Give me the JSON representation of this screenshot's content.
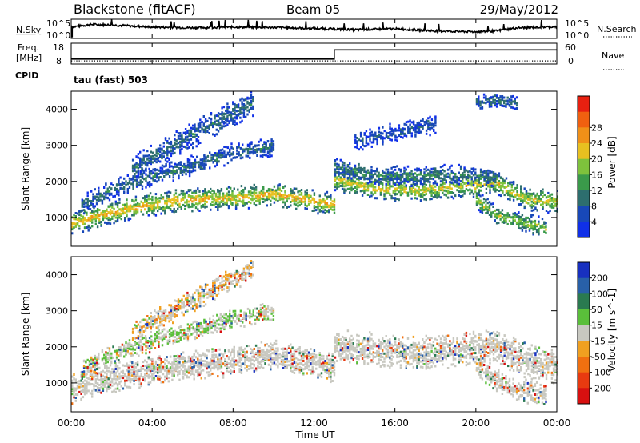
{
  "header": {
    "station": "Blackstone (fitACF)",
    "beam": "Beam 05",
    "date": "29/May/2012"
  },
  "noise_panel": {
    "left_label": "N.Sky",
    "right_label": "N.Search",
    "left_ticks": [
      "10^5",
      "10^0"
    ],
    "right_ticks": [
      "10^5",
      "10^0"
    ]
  },
  "freq_panel": {
    "left_label_line1": "Freq.",
    "left_label_line2": "[MHz]",
    "left_ticks": [
      "18",
      "8"
    ],
    "right_ticks": [
      "60",
      "0"
    ],
    "right_label": "Nave",
    "cpid_label": "CPID",
    "program": "tau (fast) 503"
  },
  "colors": {
    "power": [
      "#1030e8",
      "#1848b8",
      "#2d6e6e",
      "#3a9a4a",
      "#7ec23c",
      "#e8c020",
      "#f09018",
      "#f06010",
      "#e82010"
    ],
    "velocity": [
      "#1830c0",
      "#2860a8",
      "#2a7a50",
      "#5abf3a",
      "#c8c8c0",
      "#f0a020",
      "#f07010",
      "#e83a10",
      "#d81010"
    ]
  },
  "chart_data": [
    {
      "type": "line",
      "name": "noise",
      "x": [
        "00:00",
        "01:00",
        "02:00",
        "03:00",
        "04:00",
        "06:00",
        "08:00",
        "10:00",
        "12:00",
        "14:00",
        "16:00",
        "18:00",
        "20:00",
        "21:00",
        "22:00",
        "24:00"
      ],
      "values": [
        0.6,
        0.75,
        0.72,
        0.66,
        0.6,
        0.56,
        0.6,
        0.58,
        0.52,
        0.45,
        0.5,
        0.38,
        0.33,
        0.38,
        0.55,
        0.62
      ],
      "ylim": [
        0,
        1
      ]
    },
    {
      "type": "line",
      "name": "frequency_nave",
      "x": [
        "00:00",
        "13:00",
        "13:00",
        "24:00"
      ],
      "frequency_mhz": [
        10.4,
        10.4,
        14.8,
        14.8
      ],
      "nave": [
        2,
        2,
        2,
        2
      ],
      "ylim": [
        8,
        18
      ]
    },
    {
      "type": "heatmap",
      "name": "power",
      "xlabel": "",
      "ylabel": "Slant Range [km]",
      "xlim": [
        0,
        24
      ],
      "ylim": [
        200,
        4500
      ],
      "x_ticks": [
        "00:00",
        "04:00",
        "08:00",
        "12:00",
        "16:00",
        "20:00",
        "00:00"
      ],
      "y_ticks": [
        1000,
        2000,
        3000,
        4000
      ],
      "colorbar": {
        "label": "Power [dB]",
        "ticks": [
          "4",
          "8",
          "12",
          "16",
          "20",
          "24",
          "28"
        ],
        "range": [
          0,
          30
        ]
      },
      "bands": [
        {
          "x": [
            0,
            2,
            4,
            6,
            8,
            10,
            12,
            13
          ],
          "range_km": [
            850,
            1150,
            1370,
            1500,
            1550,
            1650,
            1450,
            1350
          ],
          "width_km": 300,
          "power_db": 20
        },
        {
          "x": [
            0.5,
            2,
            4,
            6,
            8,
            10
          ],
          "range_km": [
            1350,
            1800,
            2150,
            2450,
            2800,
            2950
          ],
          "width_km": 250,
          "power_db": 8
        },
        {
          "x": [
            3,
            5,
            7,
            9
          ],
          "range_km": [
            2350,
            3000,
            3600,
            4200
          ],
          "width_km": 350,
          "power_db": 8
        },
        {
          "x": [
            13,
            15,
            17,
            19,
            21,
            22.5,
            24
          ],
          "range_km": [
            2050,
            1800,
            1750,
            1850,
            1950,
            1500,
            1450
          ],
          "width_km": 300,
          "power_db": 18
        },
        {
          "x": [
            13,
            15,
            17,
            19,
            21
          ],
          "range_km": [
            2400,
            2150,
            2150,
            2200,
            2100
          ],
          "width_km": 250,
          "power_db": 10
        },
        {
          "x": [
            20,
            21,
            22,
            23.5
          ],
          "range_km": [
            1500,
            1050,
            900,
            700
          ],
          "width_km": 250,
          "power_db": 16
        },
        {
          "x": [
            14,
            16,
            18
          ],
          "range_km": [
            3100,
            3350,
            3600
          ],
          "width_km": 250,
          "power_db": 6
        },
        {
          "x": [
            20,
            21,
            22
          ],
          "range_km": [
            4200,
            4250,
            4150
          ],
          "width_km": 200,
          "power_db": 8
        }
      ]
    },
    {
      "type": "heatmap",
      "name": "velocity",
      "xlabel": "Time UT",
      "ylabel": "Slant Range [km]",
      "xlim": [
        0,
        24
      ],
      "ylim": [
        200,
        4500
      ],
      "x_ticks": [
        "00:00",
        "04:00",
        "08:00",
        "12:00",
        "16:00",
        "20:00",
        "00:00"
      ],
      "y_ticks": [
        1000,
        2000,
        3000,
        4000
      ],
      "colorbar": {
        "label": "Velocity [m s^-1]",
        "ticks": [
          "200",
          "100",
          "50",
          "15",
          "-15",
          "-50",
          "-100",
          "-200"
        ],
        "range": [
          -250,
          250
        ]
      },
      "bands": [
        {
          "x": [
            0,
            2,
            4,
            6,
            8,
            10,
            12,
            13
          ],
          "range_km": [
            850,
            1150,
            1370,
            1500,
            1600,
            1800,
            1550,
            1400
          ],
          "width_km": 400,
          "velocity": 0
        },
        {
          "x": [
            0.5,
            2,
            4,
            6,
            8,
            10
          ],
          "range_km": [
            1350,
            1800,
            2150,
            2450,
            2800,
            2950
          ],
          "width_km": 250,
          "velocity": 20
        },
        {
          "x": [
            3,
            5,
            7,
            9
          ],
          "range_km": [
            2350,
            3000,
            3600,
            4200
          ],
          "width_km": 300,
          "velocity": -20
        },
        {
          "x": [
            13,
            15,
            17,
            19,
            21,
            22.5,
            24
          ],
          "range_km": [
            2050,
            1900,
            1800,
            1900,
            2000,
            1600,
            1450
          ],
          "width_km": 450,
          "velocity": 0
        },
        {
          "x": [
            20,
            21,
            22,
            23.5
          ],
          "range_km": [
            1500,
            1050,
            800,
            700
          ],
          "width_km": 300,
          "velocity": 0
        }
      ]
    }
  ]
}
